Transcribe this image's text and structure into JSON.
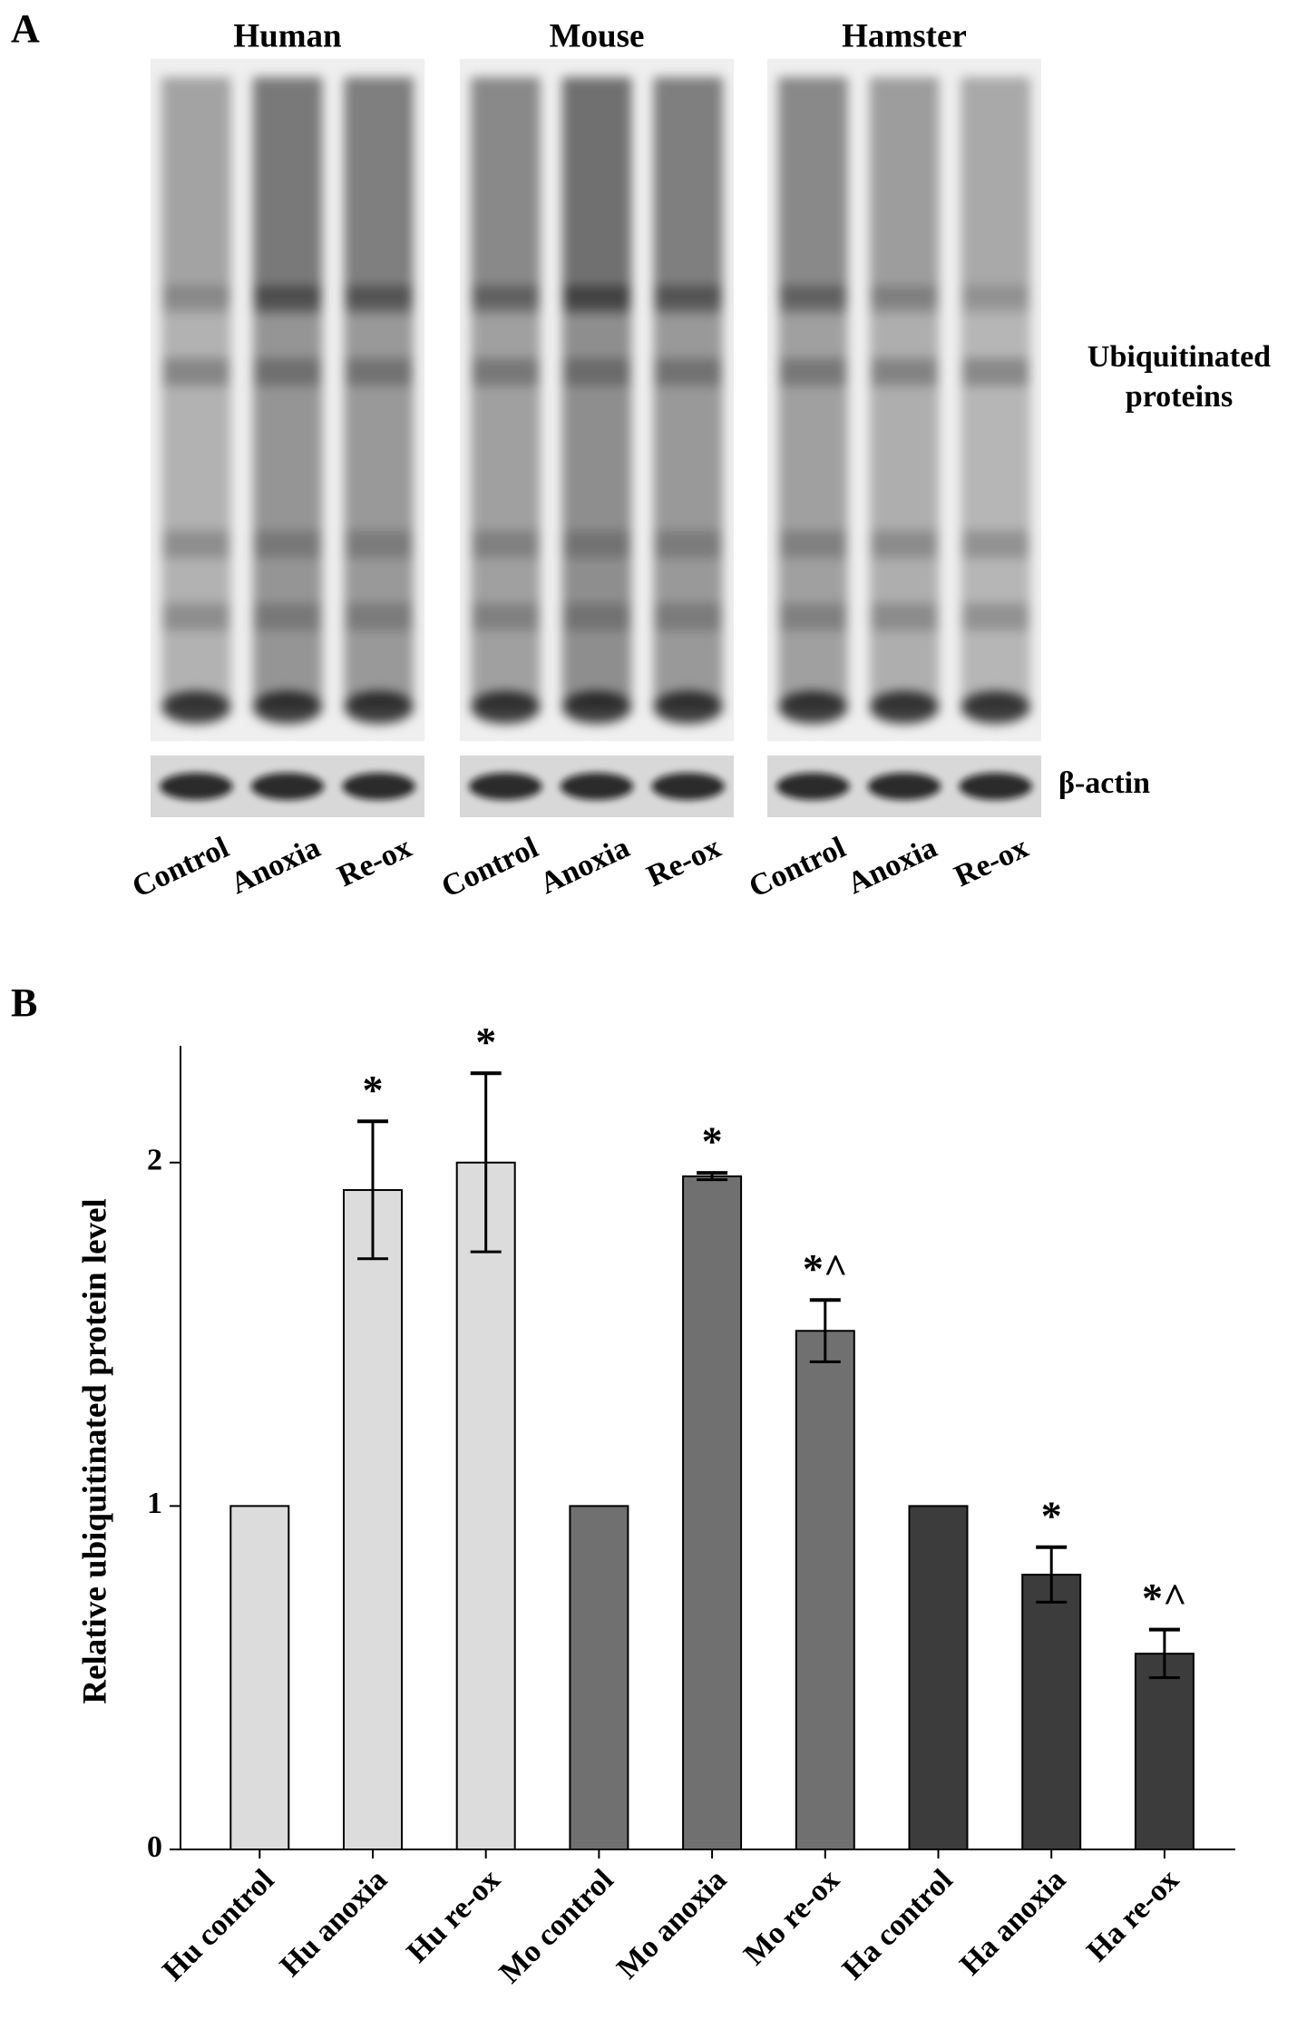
{
  "panel_a": {
    "label": "A",
    "species": [
      "Human",
      "Mouse",
      "Hamster"
    ],
    "lane_labels": [
      [
        "Control",
        "Anoxia",
        "Re-ox"
      ],
      [
        "Control",
        "Anoxia",
        "Re-ox"
      ],
      [
        "Control",
        "Anoxia",
        "Re-ox"
      ]
    ],
    "blot_label": [
      "Ubiquitinated",
      "proteins"
    ],
    "loading_label": "β-actin"
  },
  "chart_data": {
    "type": "bar",
    "panel_label": "B",
    "y_label": "Relative ubiquitinated protein level",
    "categories": [
      "Hu control",
      "Hu anoxia",
      "Hu re-ox",
      "Mo control",
      "Mo anoxia",
      "Mo re-ox",
      "Ha control",
      "Ha anoxia",
      "Ha re-ox"
    ],
    "values": [
      1,
      1.92,
      2.0,
      1,
      1.96,
      1.51,
      1,
      0.8,
      0.57
    ],
    "errors": [
      null,
      0.2,
      0.26,
      null,
      0.01,
      0.09,
      null,
      0.08,
      0.07
    ],
    "annotations": [
      null,
      "*",
      "*",
      null,
      "*",
      "*^",
      null,
      "*",
      "*^"
    ],
    "colors": [
      "#dcdcdc",
      "#dcdcdc",
      "#dcdcdc",
      "#707070",
      "#707070",
      "#707070",
      "#3c3c3c",
      "#3c3c3c",
      "#3c3c3c"
    ],
    "ylim": [
      0,
      2.34
    ],
    "yticks": [
      0,
      1,
      2
    ]
  }
}
